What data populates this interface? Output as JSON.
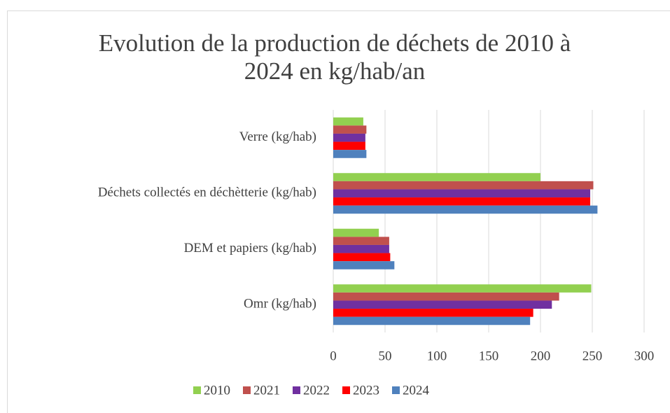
{
  "chart_data": {
    "type": "bar",
    "orientation": "horizontal",
    "title": "Evolution de la production de déchets de 2010 à 2024 en kg/hab/an",
    "categories": [
      "Verre (kg/hab)",
      "Déchets collectés en déchètterie (kg/hab)",
      "DEM et papiers (kg/hab)",
      "Omr (kg/hab)"
    ],
    "series": [
      {
        "name": "2010",
        "color": "#92d050",
        "values": [
          29,
          200,
          44,
          249
        ]
      },
      {
        "name": "2021",
        "color": "#c0504d",
        "values": [
          32,
          251,
          54,
          218
        ]
      },
      {
        "name": "2022",
        "color": "#7030a0",
        "values": [
          31,
          248,
          54,
          211
        ]
      },
      {
        "name": "2023",
        "color": "#ff0000",
        "values": [
          31,
          248,
          55,
          193
        ]
      },
      {
        "name": "2024",
        "color": "#4f81bd",
        "values": [
          32,
          255,
          59,
          190
        ]
      }
    ],
    "xlim": [
      0,
      300
    ],
    "xticks": [
      0,
      50,
      100,
      150,
      200,
      250,
      300
    ],
    "grid": true,
    "legend": "bottom"
  }
}
